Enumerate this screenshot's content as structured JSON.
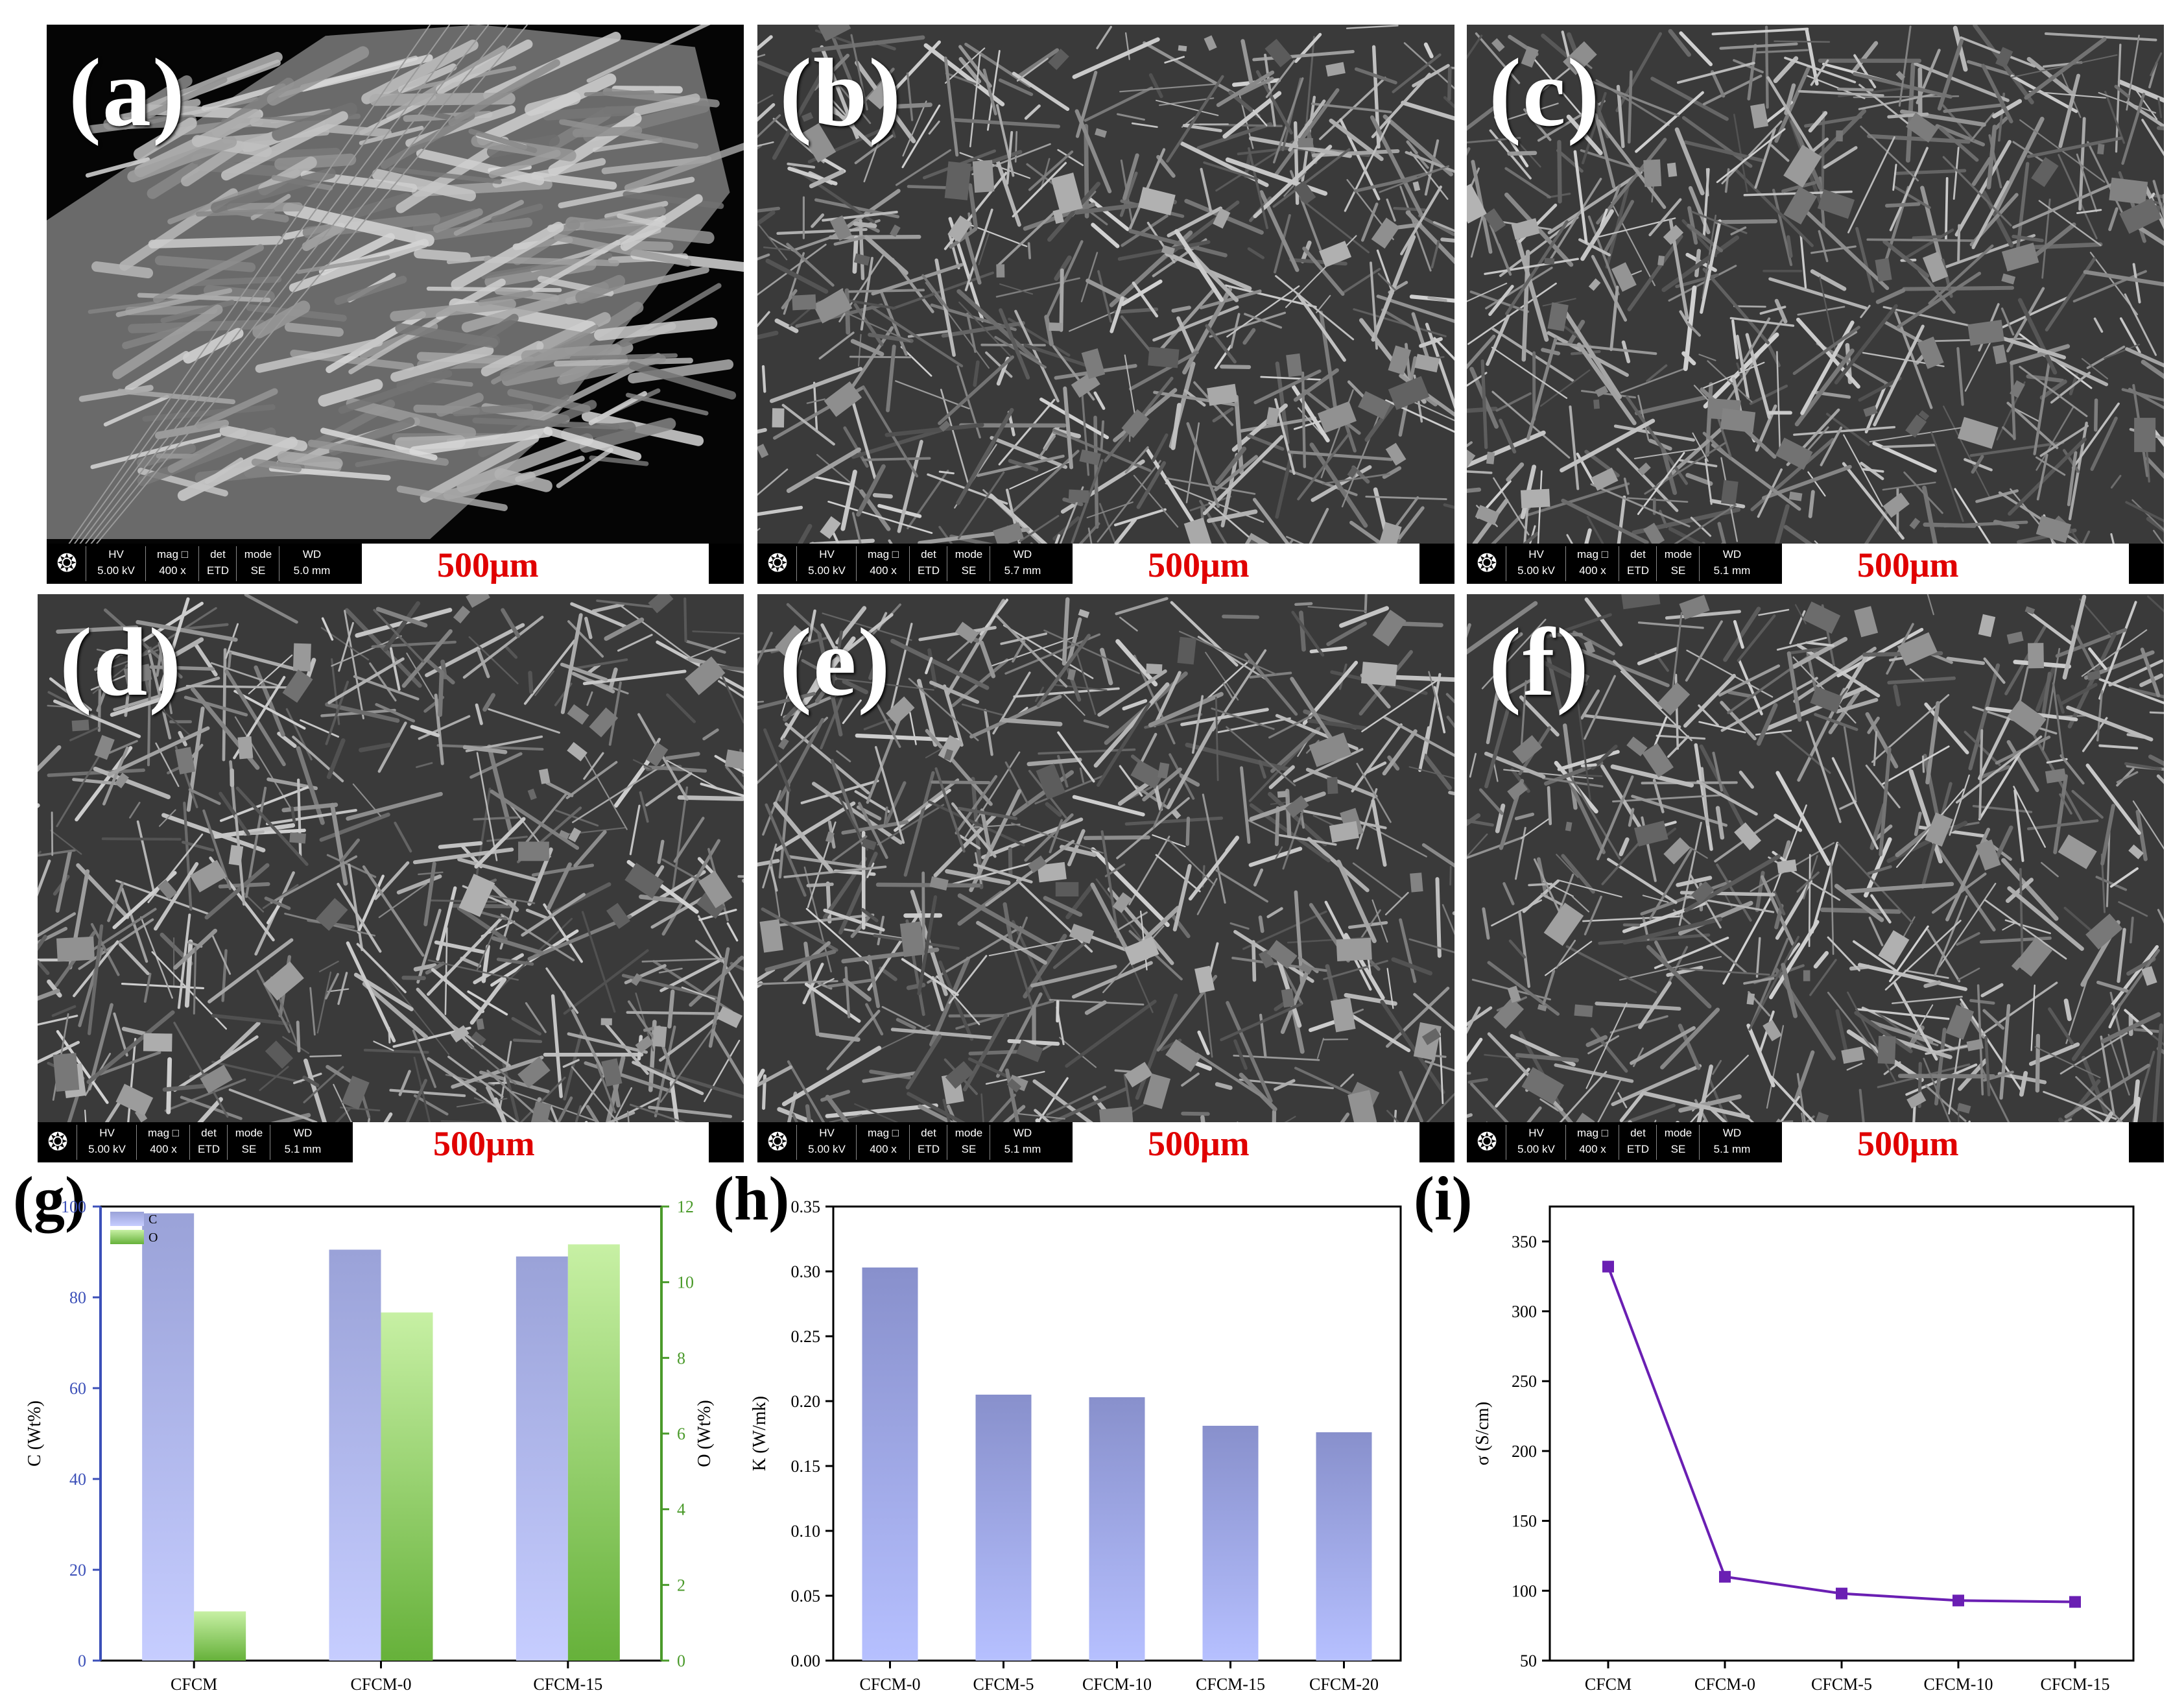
{
  "sem_panels": [
    {
      "letter": "(a)",
      "hv_label": "HV",
      "hv": "5.00 kV",
      "mag_label": "mag □",
      "mag": "400 x",
      "det_label": "det",
      "det": "ETD",
      "mode_label": "mode",
      "mode": "SE",
      "wd_label": "WD",
      "wd": "5.0 mm",
      "scale": "500μm"
    },
    {
      "letter": "(b)",
      "hv_label": "HV",
      "hv": "5.00 kV",
      "mag_label": "mag □",
      "mag": "400 x",
      "det_label": "det",
      "det": "ETD",
      "mode_label": "mode",
      "mode": "SE",
      "wd_label": "WD",
      "wd": "5.7 mm",
      "scale": "500μm"
    },
    {
      "letter": "(c)",
      "hv_label": "HV",
      "hv": "5.00 kV",
      "mag_label": "mag □",
      "mag": "400 x",
      "det_label": "det",
      "det": "ETD",
      "mode_label": "mode",
      "mode": "SE",
      "wd_label": "WD",
      "wd": "5.1 mm",
      "scale": "500μm"
    },
    {
      "letter": "(d)",
      "hv_label": "HV",
      "hv": "5.00 kV",
      "mag_label": "mag □",
      "mag": "400 x",
      "det_label": "det",
      "det": "ETD",
      "mode_label": "mode",
      "mode": "SE",
      "wd_label": "WD",
      "wd": "5.1 mm",
      "scale": "500μm"
    },
    {
      "letter": "(e)",
      "hv_label": "HV",
      "hv": "5.00 kV",
      "mag_label": "mag □",
      "mag": "400 x",
      "det_label": "det",
      "det": "ETD",
      "mode_label": "mode",
      "mode": "SE",
      "wd_label": "WD",
      "wd": "5.1 mm",
      "scale": "500μm"
    },
    {
      "letter": "(f)",
      "hv_label": "HV",
      "hv": "5.00 kV",
      "mag_label": "mag □",
      "mag": "400 x",
      "det_label": "det",
      "det": "ETD",
      "mode_label": "mode",
      "mode": "SE",
      "wd_label": "WD",
      "wd": "5.1 mm",
      "scale": "500μm"
    }
  ],
  "chart_labels": {
    "g": "(g)",
    "h": "(h)",
    "i": "(i)"
  },
  "colors": {
    "C_bar": "#aab0f2",
    "O_bar": "#8fd05a",
    "K_bar": "#9aa6ea",
    "sigma_line": "#6a1fb3",
    "left_axis": "#3b4fb8",
    "right_axis": "#4a9a2a"
  },
  "chart_data": [
    {
      "type": "bar",
      "id": "g",
      "categories": [
        "CFCM",
        "CFCM-0",
        "CFCM-15"
      ],
      "series": [
        {
          "name": "C",
          "axis": "left",
          "values": [
            98.5,
            90.5,
            89.0
          ]
        },
        {
          "name": "O",
          "axis": "right",
          "values": [
            1.3,
            9.2,
            11.0
          ]
        }
      ],
      "ylabel": "C (Wt%)",
      "y2label": "O (Wt%)",
      "ylim": [
        0,
        100
      ],
      "y2lim": [
        0,
        12
      ],
      "yticks": [
        0,
        20,
        40,
        60,
        80,
        100
      ],
      "y2ticks": [
        0,
        2,
        4,
        6,
        8,
        10,
        12
      ],
      "legend": "top-left"
    },
    {
      "type": "bar",
      "id": "h",
      "categories": [
        "CFCM-0",
        "CFCM-5",
        "CFCM-10",
        "CFCM-15",
        "CFCM-20"
      ],
      "values": [
        0.303,
        0.205,
        0.203,
        0.181,
        0.176
      ],
      "ylabel": "K (W/mk)",
      "ylim": [
        0,
        0.35
      ],
      "yticks": [
        "0.00",
        "0.05",
        "0.10",
        "0.15",
        "0.20",
        "0.25",
        "0.30",
        "0.35"
      ]
    },
    {
      "type": "line",
      "id": "i",
      "categories": [
        "CFCM",
        "CFCM-0",
        "CFCM-5",
        "CFCM-10",
        "CFCM-15"
      ],
      "values": [
        332,
        110,
        98,
        93,
        92
      ],
      "ylabel": "σ (S/cm)",
      "ylim": [
        50,
        375
      ],
      "yticks": [
        50,
        100,
        150,
        200,
        250,
        300,
        350
      ]
    }
  ]
}
